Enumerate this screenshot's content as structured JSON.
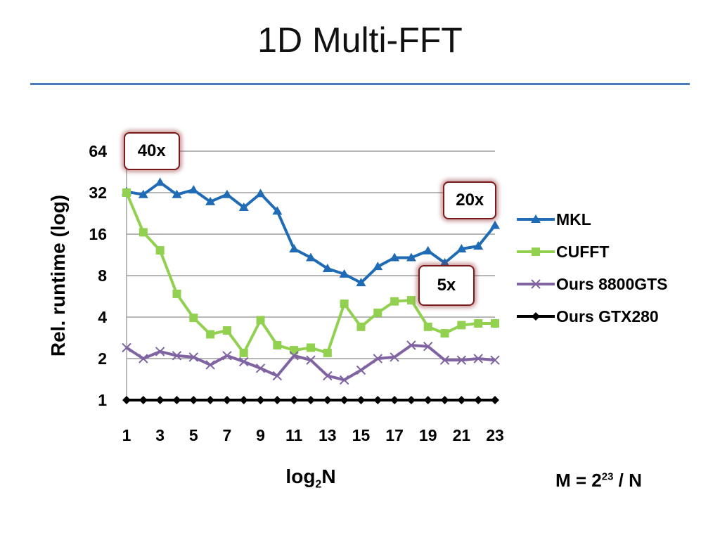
{
  "slide": {
    "title": "1D Multi-FFT",
    "note_prefix": "M = 2",
    "note_exp": "23",
    "note_suffix": " / N"
  },
  "chart_data": {
    "type": "line",
    "ylabel": "Rel. runtime (log)",
    "xlabel_base": "log",
    "xlabel_sub": "2",
    "xlabel_suffix": "N",
    "y_scale": "log2",
    "ylim": [
      1,
      64
    ],
    "y_ticks": [
      "1",
      "2",
      "4",
      "8",
      "16",
      "32",
      "64"
    ],
    "x": [
      1,
      2,
      3,
      4,
      5,
      6,
      7,
      8,
      9,
      10,
      11,
      12,
      13,
      14,
      15,
      16,
      17,
      18,
      19,
      20,
      21,
      22,
      23
    ],
    "x_ticks": [
      "1",
      "3",
      "5",
      "7",
      "9",
      "11",
      "13",
      "15",
      "17",
      "19",
      "21",
      "23"
    ],
    "grid": true,
    "legend_position": "right",
    "series": [
      {
        "name": "MKL",
        "color": "#1f6bb5",
        "marker": "triangle",
        "values": [
          32.5,
          31,
          38,
          31,
          33.5,
          27.5,
          31,
          25,
          31.5,
          23.5,
          12.5,
          10.8,
          9,
          8.2,
          7.1,
          9.3,
          10.8,
          10.8,
          12.1,
          9.9,
          12.5,
          13.1,
          18.5
        ]
      },
      {
        "name": "CUFFT",
        "color": "#92d050",
        "marker": "square",
        "values": [
          32,
          16.5,
          12.2,
          5.9,
          3.95,
          3.0,
          3.2,
          2.2,
          3.8,
          2.5,
          2.3,
          2.4,
          2.2,
          5.0,
          3.4,
          4.3,
          5.2,
          5.3,
          3.4,
          3.05,
          3.5,
          3.6,
          3.6
        ]
      },
      {
        "name": "Ours 8800GTS",
        "color": "#8064a2",
        "marker": "x",
        "values": [
          2.4,
          2.0,
          2.25,
          2.1,
          2.05,
          1.8,
          2.1,
          1.9,
          1.7,
          1.5,
          2.1,
          1.95,
          1.5,
          1.4,
          1.65,
          2.0,
          2.05,
          2.5,
          2.45,
          1.95,
          1.95,
          2.0,
          1.95
        ]
      },
      {
        "name": "Ours GTX280",
        "color": "#000000",
        "marker": "diamond",
        "values": [
          1,
          1,
          1,
          1,
          1,
          1,
          1,
          1,
          1,
          1,
          1,
          1,
          1,
          1,
          1,
          1,
          1,
          1,
          1,
          1,
          1,
          1,
          1
        ]
      }
    ],
    "annotations": [
      {
        "text": "40x",
        "x": 2.5,
        "y": 64
      },
      {
        "text": "20x",
        "x": 21.5,
        "y": 28
      },
      {
        "text": "5x",
        "x": 20.1,
        "y": 6.8
      }
    ]
  }
}
